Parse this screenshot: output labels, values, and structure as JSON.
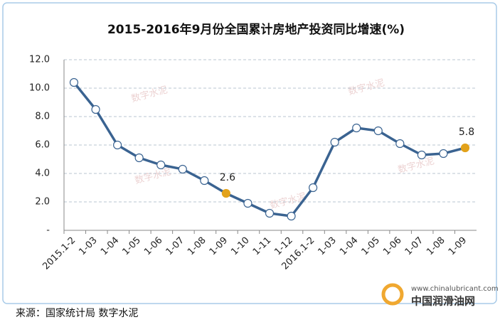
{
  "chart_data": {
    "type": "line",
    "title": "2015-2016年9月份全国累计房地产投资同比增速(%)",
    "categories": [
      "2015.1-2",
      "1-03",
      "1-04",
      "1-05",
      "1-06",
      "1-07",
      "1-08",
      "1-09",
      "1-10",
      "1-11",
      "1-12",
      "2016.1-2",
      "1-03",
      "1-04",
      "1-05",
      "1-06",
      "1-07",
      "1-08",
      "1-09"
    ],
    "series": [
      {
        "name": "累计房地产投资同比增速",
        "color": "#3a6391",
        "values": [
          10.4,
          8.5,
          6.0,
          5.1,
          4.6,
          4.3,
          3.5,
          2.6,
          1.9,
          1.2,
          1.0,
          3.0,
          6.2,
          7.2,
          7.0,
          6.1,
          5.3,
          5.4,
          5.8
        ],
        "value_labels": [
          null,
          null,
          null,
          null,
          null,
          null,
          null,
          "2.6",
          null,
          null,
          null,
          null,
          null,
          null,
          null,
          null,
          null,
          null,
          "5.8"
        ]
      }
    ],
    "highlight_color": "#e2a21b",
    "ylim": [
      0,
      12
    ],
    "yticks": [
      {
        "value": 0,
        "label": "-"
      },
      {
        "value": 2,
        "label": "2.0"
      },
      {
        "value": 4,
        "label": "4.0"
      },
      {
        "value": 6,
        "label": "6.0"
      },
      {
        "value": 8,
        "label": "8.0"
      },
      {
        "value": 10,
        "label": "10.0"
      },
      {
        "value": 12,
        "label": "12.0"
      }
    ],
    "grid": true,
    "source": "来源：国家统计局  数字水泥",
    "watermark": "数字水泥",
    "logo_url": "www.chinalubricant.com",
    "logo_name": "中国润滑油网"
  }
}
